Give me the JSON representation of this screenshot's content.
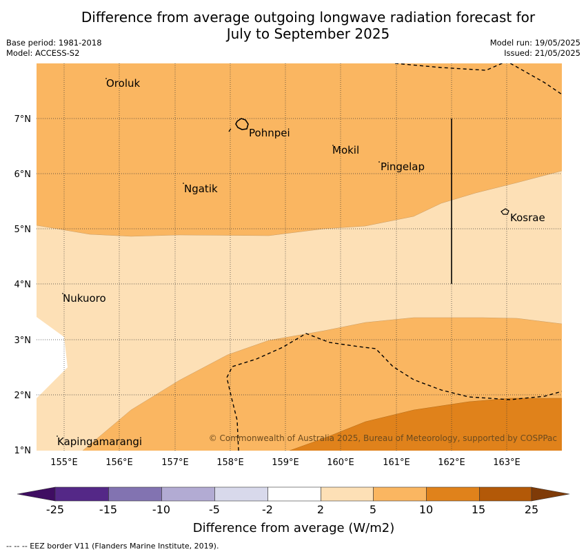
{
  "title": {
    "line1": "Difference from average outgoing longwave radiation forecast for",
    "line2": "July to September 2025"
  },
  "meta": {
    "base_period": "Base period: 1981-2018",
    "model": "Model: ACCESS-S2",
    "model_run": "Model run: 19/05/2025",
    "issued": "Issued: 21/05/2025"
  },
  "map": {
    "lat_labels": [
      "7°N",
      "6°N",
      "5°N",
      "4°N",
      "3°N",
      "2°N",
      "1°N"
    ],
    "lon_labels": [
      "155°E",
      "156°E",
      "157°E",
      "158°E",
      "159°E",
      "160°E",
      "161°E",
      "162°E",
      "163°E"
    ],
    "places": [
      "Oroluk",
      "Pohnpei",
      "Mokil",
      "Pingelap",
      "Ngatik",
      "Kosrae",
      "Nukuoro",
      "Kapingamarangi"
    ],
    "copyright": "© Commonwealth of Australia 2025, Bureau of Meteorology, supported by COSPPac",
    "colors": {
      "class_2_5": "#fde0b6",
      "class_5_10": "#fab661",
      "class_10_15": "#e0821b",
      "neutral": "#ffffff"
    }
  },
  "colorbar": {
    "ticks": [
      "-25",
      "-15",
      "-10",
      "-5",
      "-2",
      "2",
      "5",
      "10",
      "15",
      "25"
    ],
    "colors": [
      "#3f0d62",
      "#542887",
      "#8273b1",
      "#b2abd3",
      "#d8d9eb",
      "#ffffff",
      "#fde0b6",
      "#fab661",
      "#e0821b",
      "#b35908",
      "#7f3b08"
    ],
    "label": "Difference from average (W/m2)"
  },
  "footer": "--  --  -- EEZ border V11 (Flanders Marine Institute, 2019)."
}
